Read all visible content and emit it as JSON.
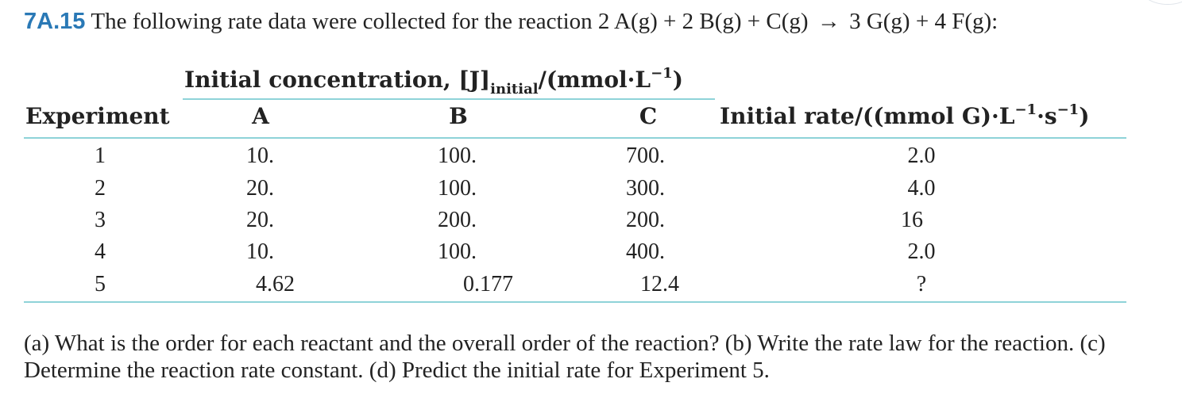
{
  "problem": {
    "number": "7A.15",
    "intro": "The following rate data were collected for the reaction 2 A(g) + 2 B(g) + C(g)",
    "arrow": "→",
    "products": "3 G(g) + 4 F(g):"
  },
  "table": {
    "group_header": {
      "prefix": "Initial concentration, [J]",
      "subscript": "initial",
      "unit_open": "/(mmol·L",
      "unit_exp": "−1",
      "unit_close": ")"
    },
    "columns": {
      "experiment": "Experiment",
      "a": "A",
      "b": "B",
      "c": "C",
      "rate_prefix": "Initial rate/((mmol G)·L",
      "rate_exp1": "−1",
      "rate_mid": "·s",
      "rate_exp2": "−1",
      "rate_close": ")"
    },
    "rows": [
      {
        "exp": "1",
        "a": "10.",
        "b": "100.",
        "c": "700.",
        "rate": "2.0"
      },
      {
        "exp": "2",
        "a": "20.",
        "b": "100.",
        "c": "300.",
        "rate": "4.0"
      },
      {
        "exp": "3",
        "a": "20.",
        "b": "200.",
        "c": "200.",
        "rate": "16"
      },
      {
        "exp": "4",
        "a": "10.",
        "b": "100.",
        "c": "400.",
        "rate": "2.0"
      },
      {
        "exp": "5",
        "a": "4.62",
        "b": "0.177",
        "c": "12.4",
        "rate": "?"
      }
    ]
  },
  "questions": "(a) What is the order for each reactant and the overall order of the reaction? (b) Write the rate law for the reaction. (c) Determine the reaction rate constant. (d) Predict the initial rate for Experiment 5.",
  "colors": {
    "problem_number": "#2a79b6",
    "table_rule": "#8ed3d8",
    "text": "#222222"
  }
}
